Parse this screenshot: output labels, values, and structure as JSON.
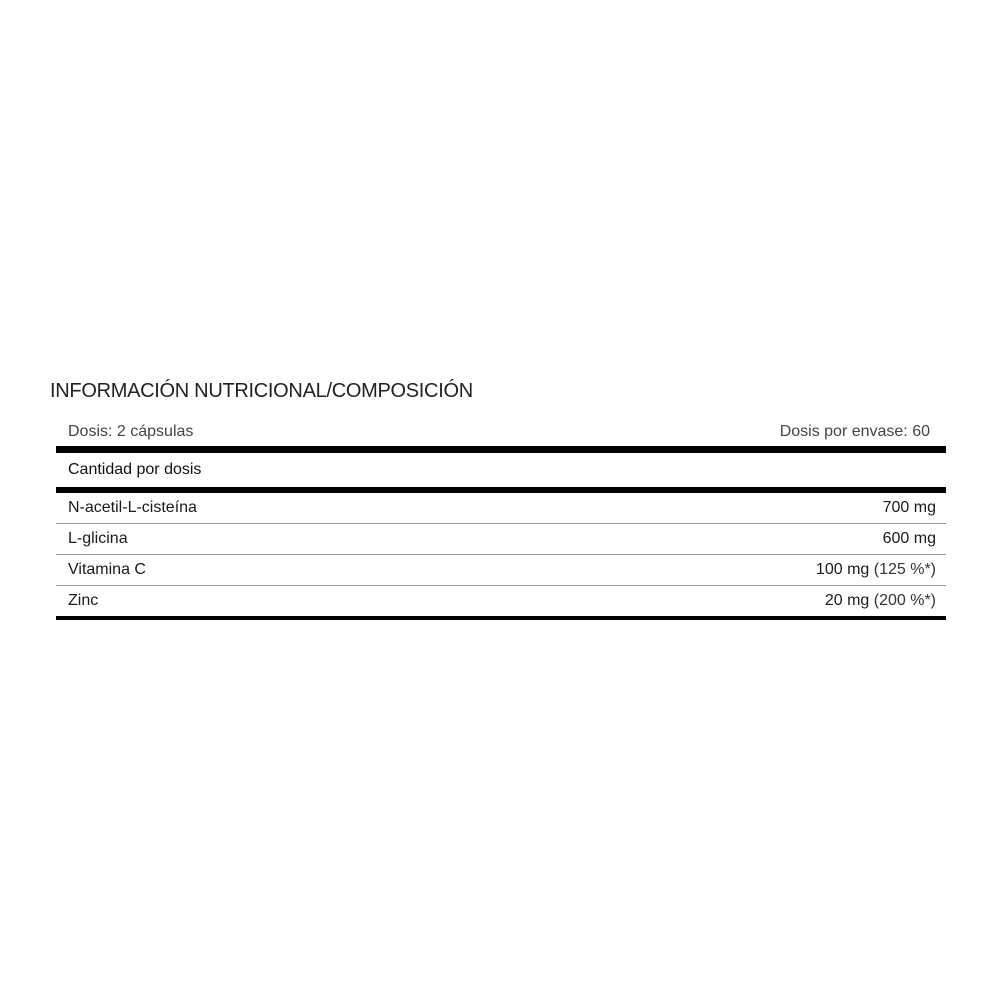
{
  "title": "INFORMACIÓN NUTRICIONAL/COMPOSICIÓN",
  "dose": "Dosis: 2 cápsulas",
  "doses_per_container": "Dosis por envase: 60",
  "amount_header": "Cantidad por dosis",
  "items": [
    {
      "name": "N-acetil-L-cisteína",
      "amount": "700 mg",
      "pct": ""
    },
    {
      "name": "L-glicina",
      "amount": "600 mg",
      "pct": ""
    },
    {
      "name": "Vitamina C",
      "amount": "100 mg",
      "pct": "(125 %*)"
    },
    {
      "name": "Zinc",
      "amount": "20 mg",
      "pct": "(200 %*)"
    }
  ]
}
